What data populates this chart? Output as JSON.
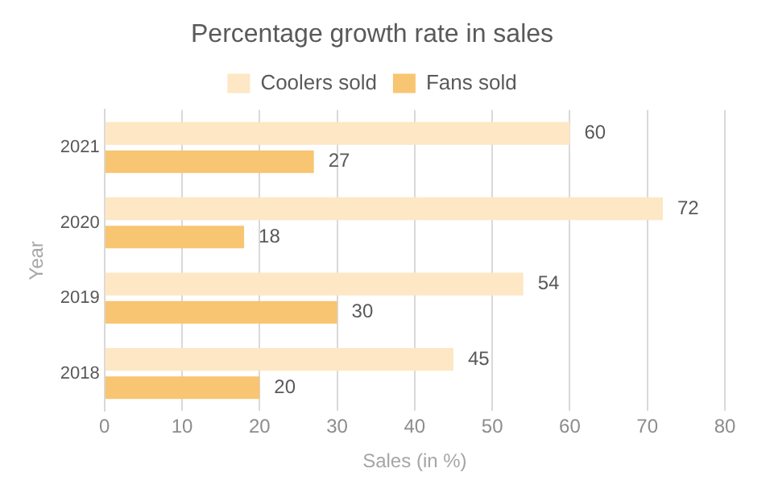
{
  "chart_data": {
    "type": "bar",
    "orientation": "horizontal",
    "title": "Percentage growth rate in sales",
    "xlabel": "Sales (in %)",
    "ylabel": "Year",
    "categories": [
      "2021",
      "2020",
      "2019",
      "2018"
    ],
    "series": [
      {
        "name": "Coolers sold",
        "color": "#fde7c4",
        "values": [
          60,
          72,
          54,
          45
        ]
      },
      {
        "name": "Fans sold",
        "color": "#f8c572",
        "values": [
          27,
          18,
          30,
          20
        ]
      }
    ],
    "xlim": [
      0,
      80
    ],
    "xticks": [
      0,
      10,
      20,
      30,
      40,
      50,
      60,
      70,
      80
    ],
    "grid": "x",
    "legend": "top",
    "data_labels": true
  }
}
